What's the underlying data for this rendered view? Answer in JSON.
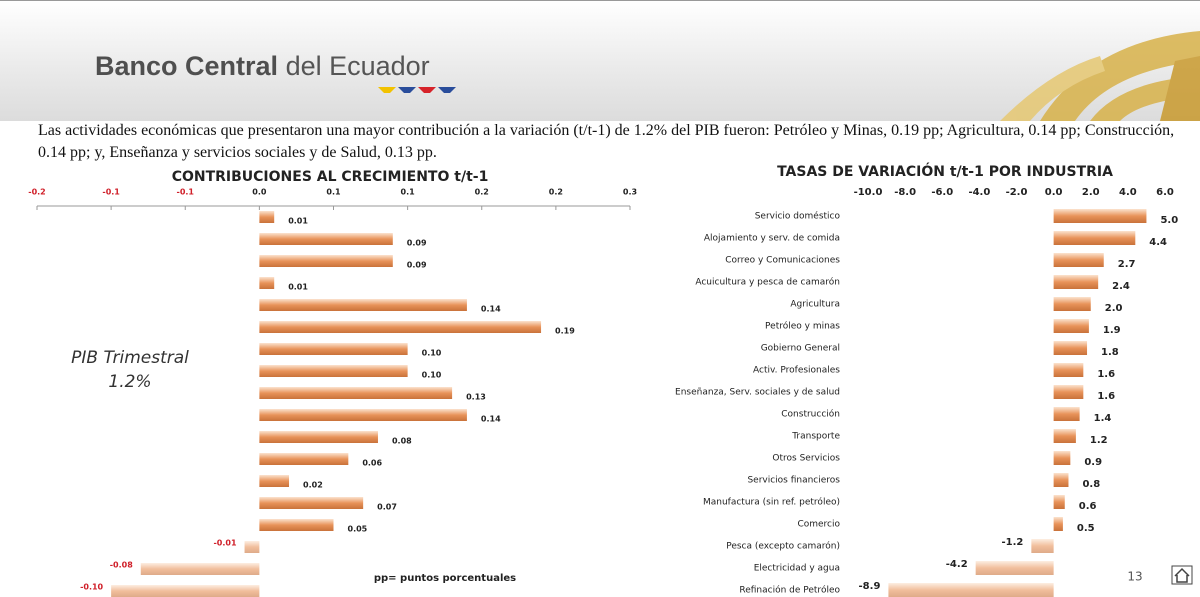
{
  "header": {
    "title_bold": "Banco Central",
    "title_rest": "del Ecuador"
  },
  "description": "Las actividades económicas que presentaron una mayor contribución a la variación (t/t-1) de 1.2% del PIB fueron: Petróleo y Minas, 0.19 pp; Agricultura, 0.14 pp; Construcción, 0.14 pp; y, Enseñanza y servicios sociales y de Salud, 0.13 pp.",
  "annotation": {
    "line1": "PIB Trimestral",
    "line2": "1.2%"
  },
  "note": "pp= puntos porcentuales",
  "page_number": "13",
  "chart_data": [
    {
      "type": "hbar",
      "title": "CONTRIBUCIONES AL CRECIMIENTO t/t-1",
      "color": "#e8935a",
      "values": [
        0.01,
        0.09,
        0.09,
        0.01,
        0.14,
        0.19,
        0.1,
        0.1,
        0.13,
        0.14,
        0.08,
        0.06,
        0.02,
        0.07,
        0.05,
        -0.01,
        -0.08,
        -0.1
      ],
      "value_labels": [
        "0.01",
        "0.09",
        "0.09",
        "0.01",
        "0.14",
        "0.19",
        "0.10",
        "0.10",
        "0.13",
        "0.14",
        "0.08",
        "0.06",
        "0.02",
        "0.07",
        "0.05",
        "-0.01",
        "-0.08",
        "-0.10"
      ],
      "xlim": [
        -0.15,
        0.25
      ],
      "xticks": [
        {
          "value": -0.15,
          "label": "-0.2"
        },
        {
          "value": -0.1,
          "label": "-0.1"
        },
        {
          "value": -0.05,
          "label": "-0.1"
        },
        {
          "value": 0,
          "label": "0.0"
        },
        {
          "value": 0.05,
          "label": "0.1"
        },
        {
          "value": 0.1,
          "label": "0.1"
        },
        {
          "value": 0.15,
          "label": "0.2"
        },
        {
          "value": 0.2,
          "label": "0.2"
        },
        {
          "value": 0.25,
          "label": "0.3"
        }
      ],
      "grid": false
    },
    {
      "type": "hbar",
      "title": "TASAS DE VARIACIÓN t/t-1 POR INDUSTRIA",
      "color": "#e8935a",
      "categories": [
        "Servicio doméstico",
        "Alojamiento y serv. de comida",
        "Correo y Comunicaciones",
        "Acuicultura y pesca de camarón",
        "Agricultura",
        "Petróleo y minas",
        "Gobierno General",
        "Activ. Profesionales",
        "Enseñanza, Serv. sociales y de salud",
        "Construcción",
        "Transporte",
        "Otros Servicios",
        "Servicios financieros",
        "Manufactura (sin ref. petróleo)",
        "Comercio",
        "Pesca (excepto camarón)",
        "Electricidad y agua",
        "Refinación de Petróleo"
      ],
      "values": [
        5.0,
        4.4,
        2.7,
        2.4,
        2.0,
        1.9,
        1.8,
        1.6,
        1.6,
        1.4,
        1.2,
        0.9,
        0.8,
        0.6,
        0.5,
        -1.2,
        -4.2,
        -8.9
      ],
      "value_labels": [
        "5.0",
        "4.4",
        "2.7",
        "2.4",
        "2.0",
        "1.9",
        "1.8",
        "1.6",
        "1.6",
        "1.4",
        "1.2",
        "0.9",
        "0.8",
        "0.6",
        "0.5",
        "-1.2",
        "-4.2",
        "-8.9"
      ],
      "xlim": [
        -10,
        6
      ],
      "xticks": [
        {
          "value": -10,
          "label": "-10.0"
        },
        {
          "value": -8,
          "label": "-8.0"
        },
        {
          "value": -6,
          "label": "-6.0"
        },
        {
          "value": -4,
          "label": "-4.0"
        },
        {
          "value": -2,
          "label": "-2.0"
        },
        {
          "value": 0,
          "label": "0.0"
        },
        {
          "value": 2,
          "label": "2.0"
        },
        {
          "value": 4,
          "label": "4.0"
        },
        {
          "value": 6,
          "label": "6.0"
        }
      ],
      "grid": false
    }
  ]
}
